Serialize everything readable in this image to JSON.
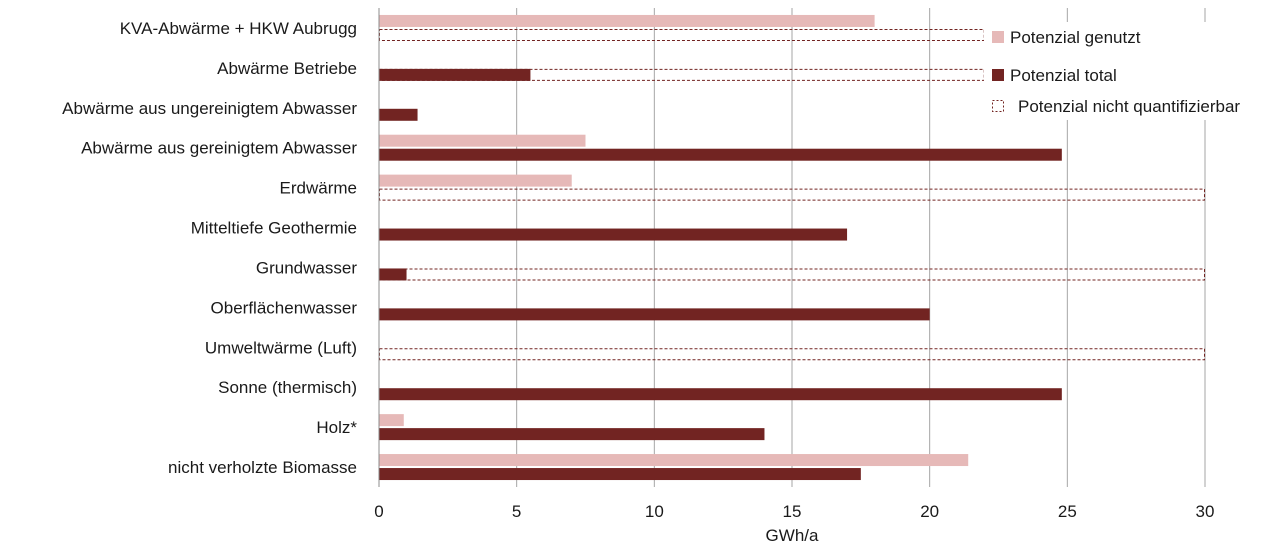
{
  "chart_data": {
    "type": "bar",
    "orientation": "horizontal",
    "categories": [
      "KVA-Abwärme + HKW Aubrugg",
      "Abwärme Betriebe",
      "Abwärme aus ungereinigtem Abwasser",
      "Abwärme aus gereinigtem Abwasser",
      "Erdwärme",
      "Mitteltiefe Geothermie",
      "Grundwasser",
      "Oberflächenwasser",
      "Umweltwärme (Luft)",
      "Sonne (thermisch)",
      "Holz*",
      "nicht verholzte Biomasse"
    ],
    "series": [
      {
        "name": "Potenzial genutzt",
        "color": "#e6b9b8",
        "values": [
          18,
          null,
          null,
          7.5,
          7,
          null,
          null,
          null,
          null,
          null,
          0.9,
          21.4
        ]
      },
      {
        "name": "Potenzial total",
        "color": "#722422",
        "values": [
          null,
          5.5,
          1.4,
          24.8,
          null,
          17,
          1,
          20,
          null,
          24.8,
          14,
          17.5
        ]
      },
      {
        "name": "Potenzial nicht quantifizierbar",
        "color": "#722422",
        "style": "dashed-outline",
        "values": [
          22,
          22,
          null,
          null,
          30,
          null,
          30,
          null,
          30,
          null,
          null,
          null
        ]
      }
    ],
    "xlabel": "GWh/a",
    "xlim": [
      0,
      30
    ],
    "xticks": [
      "0",
      "5",
      "10",
      "15",
      "20",
      "25",
      "30"
    ],
    "grid": "vertical",
    "legend_position": "top-right"
  }
}
